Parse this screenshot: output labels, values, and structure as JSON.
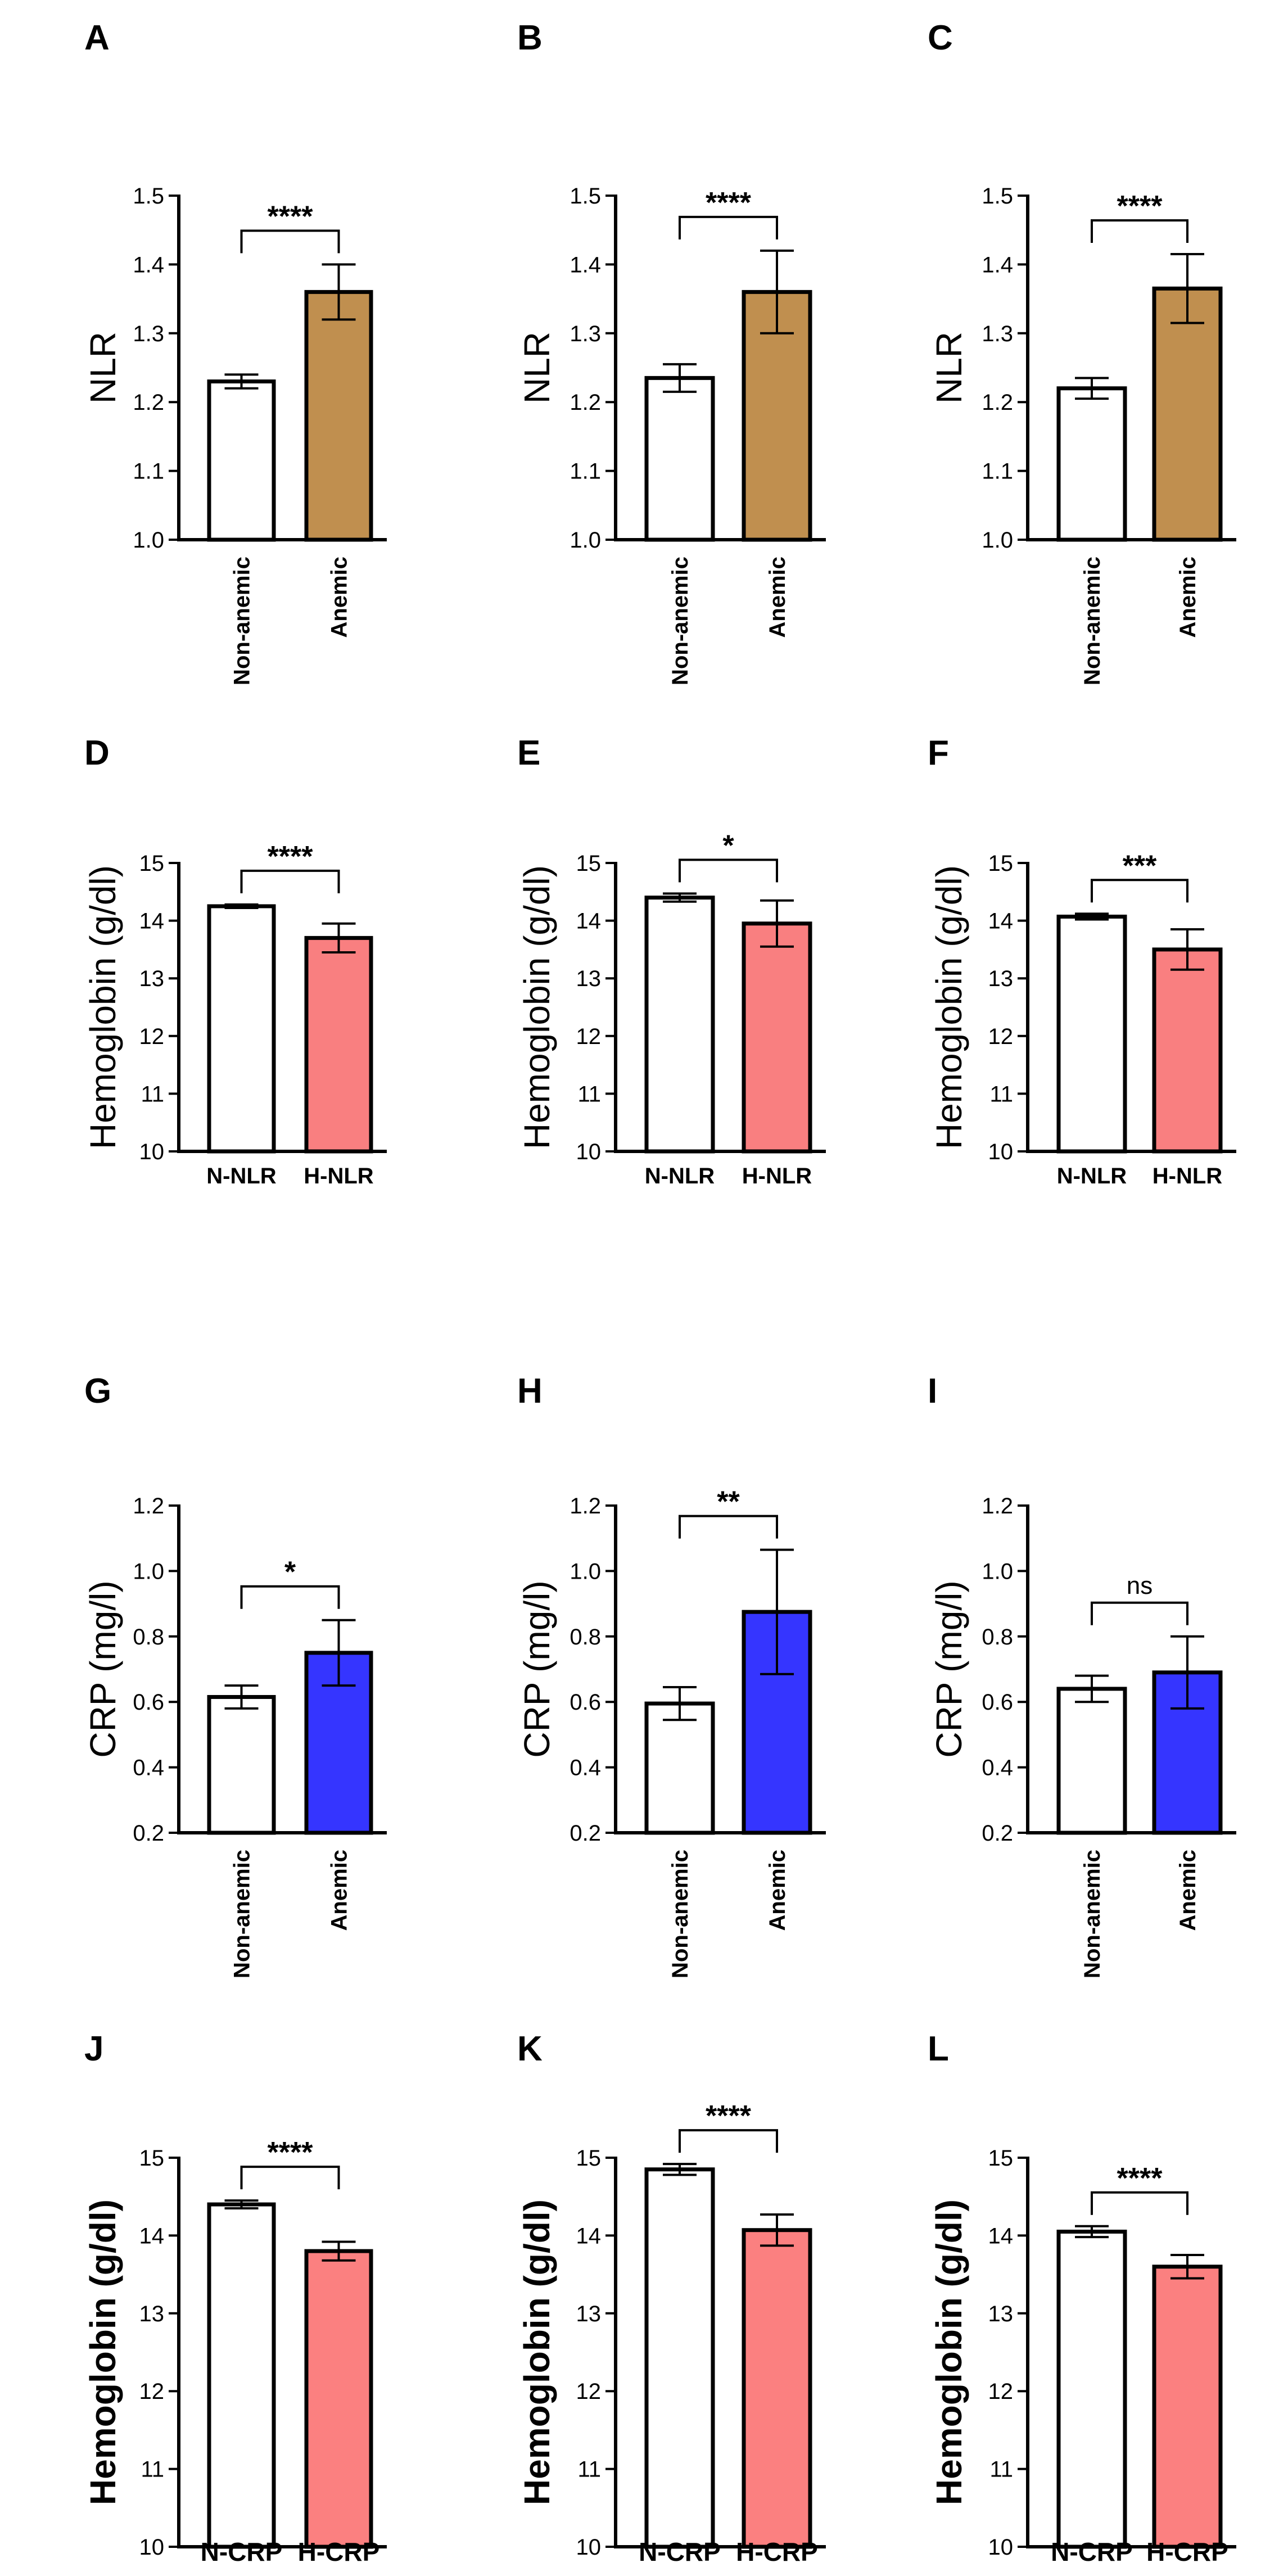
{
  "figure": {
    "title": ""
  },
  "colors": {
    "white_bar": "#ffffff",
    "anemic_nlr": "#c08f4f",
    "h_nlr": "#f97f80",
    "anemic_crp": "#3535ff",
    "h_crp": "#fb8080",
    "axis": "#000000"
  },
  "chart_data": [
    {
      "panel": "A",
      "type": "bar",
      "ylabel": "NLR",
      "ylabel_bold": false,
      "ylim": [
        1.0,
        1.5
      ],
      "yticks": [
        "1.0",
        "1.1",
        "1.2",
        "1.3",
        "1.4",
        "1.5"
      ],
      "categories": [
        "Non-anemic",
        "Anemic"
      ],
      "values": [
        1.23,
        1.36
      ],
      "errors": [
        0.01,
        0.04
      ],
      "bar_colors": [
        "#ffffff",
        "#c08f4f"
      ],
      "significance": "****",
      "tick_labels_rotated": true
    },
    {
      "panel": "B",
      "type": "bar",
      "ylabel": "NLR",
      "ylabel_bold": false,
      "ylim": [
        1.0,
        1.5
      ],
      "yticks": [
        "1.0",
        "1.1",
        "1.2",
        "1.3",
        "1.4",
        "1.5"
      ],
      "categories": [
        "Non-anemic",
        "Anemic"
      ],
      "values": [
        1.235,
        1.36
      ],
      "errors": [
        0.02,
        0.06
      ],
      "bar_colors": [
        "#ffffff",
        "#c08f4f"
      ],
      "significance": "****",
      "tick_labels_rotated": true
    },
    {
      "panel": "C",
      "type": "bar",
      "ylabel": "NLR",
      "ylabel_bold": false,
      "ylim": [
        1.0,
        1.5
      ],
      "yticks": [
        "1.0",
        "1.1",
        "1.2",
        "1.3",
        "1.4",
        "1.5"
      ],
      "categories": [
        "Non-anemic",
        "Anemic"
      ],
      "values": [
        1.22,
        1.365
      ],
      "errors": [
        0.015,
        0.05
      ],
      "bar_colors": [
        "#ffffff",
        "#c08f4f"
      ],
      "significance": "****",
      "tick_labels_rotated": true
    },
    {
      "panel": "D",
      "type": "bar",
      "ylabel": "Hemoglobin (g/dl)",
      "ylabel_bold": false,
      "ylim": [
        10,
        15
      ],
      "yticks": [
        "10",
        "11",
        "12",
        "13",
        "14",
        "15"
      ],
      "categories": [
        "N-NLR",
        "H-NLR"
      ],
      "values": [
        14.25,
        13.7
      ],
      "errors": [
        0.03,
        0.25
      ],
      "bar_colors": [
        "#ffffff",
        "#f97f80"
      ],
      "significance": "****",
      "tick_labels_rotated": false
    },
    {
      "panel": "E",
      "type": "bar",
      "ylabel": "Hemoglobin (g/dl)",
      "ylabel_bold": false,
      "ylim": [
        10,
        15
      ],
      "yticks": [
        "10",
        "11",
        "12",
        "13",
        "14",
        "15"
      ],
      "categories": [
        "N-NLR",
        "H-NLR"
      ],
      "values": [
        14.4,
        13.95
      ],
      "errors": [
        0.07,
        0.4
      ],
      "bar_colors": [
        "#ffffff",
        "#f97f80"
      ],
      "significance": "*",
      "tick_labels_rotated": false
    },
    {
      "panel": "F",
      "type": "bar",
      "ylabel": "Hemoglobin (g/dl)",
      "ylabel_bold": false,
      "ylim": [
        10,
        15
      ],
      "yticks": [
        "10",
        "11",
        "12",
        "13",
        "14",
        "15"
      ],
      "categories": [
        "N-NLR",
        "H-NLR"
      ],
      "values": [
        14.07,
        13.5
      ],
      "errors": [
        0.05,
        0.35
      ],
      "bar_colors": [
        "#ffffff",
        "#f97f80"
      ],
      "significance": "***",
      "tick_labels_rotated": false
    },
    {
      "panel": "G",
      "type": "bar",
      "ylabel": "CRP (mg/l)",
      "ylabel_bold": false,
      "ylim": [
        0.2,
        1.2
      ],
      "yticks": [
        "0.2",
        "0.4",
        "0.6",
        "0.8",
        "1.0",
        "1.2"
      ],
      "categories": [
        "Non-anemic",
        "Anemic"
      ],
      "values": [
        0.615,
        0.75
      ],
      "errors": [
        0.035,
        0.1
      ],
      "bar_colors": [
        "#ffffff",
        "#3535ff"
      ],
      "significance": "*",
      "tick_labels_rotated": true
    },
    {
      "panel": "H",
      "type": "bar",
      "ylabel": "CRP (mg/l)",
      "ylabel_bold": false,
      "ylim": [
        0.2,
        1.2
      ],
      "yticks": [
        "0.2",
        "0.4",
        "0.6",
        "0.8",
        "1.0",
        "1.2"
      ],
      "categories": [
        "Non-anemic",
        "Anemic"
      ],
      "values": [
        0.595,
        0.875
      ],
      "errors": [
        0.05,
        0.19
      ],
      "bar_colors": [
        "#ffffff",
        "#3535ff"
      ],
      "significance": "**",
      "tick_labels_rotated": true
    },
    {
      "panel": "I",
      "type": "bar",
      "ylabel": "CRP (mg/l)",
      "ylabel_bold": false,
      "ylim": [
        0.2,
        1.2
      ],
      "yticks": [
        "0.2",
        "0.4",
        "0.6",
        "0.8",
        "1.0",
        "1.2"
      ],
      "categories": [
        "Non-anemic",
        "Anemic"
      ],
      "values": [
        0.64,
        0.69
      ],
      "errors": [
        0.04,
        0.11
      ],
      "bar_colors": [
        "#ffffff",
        "#3535ff"
      ],
      "significance": "ns",
      "tick_labels_rotated": true
    },
    {
      "panel": "J",
      "type": "bar",
      "ylabel": "Hemoglobin (g/dl)",
      "ylabel_bold": true,
      "ylim": [
        10,
        15
      ],
      "yticks": [
        "10",
        "11",
        "12",
        "13",
        "14",
        "15"
      ],
      "categories": [
        "N-CRP",
        "H-CRP"
      ],
      "values": [
        14.4,
        13.8
      ],
      "errors": [
        0.05,
        0.12
      ],
      "bar_colors": [
        "#ffffff",
        "#fb8080"
      ],
      "significance": "****",
      "tick_labels_rotated": false
    },
    {
      "panel": "K",
      "type": "bar",
      "ylabel": "Hemoglobin (g/dl)",
      "ylabel_bold": true,
      "ylim": [
        10,
        15
      ],
      "yticks": [
        "10",
        "11",
        "12",
        "13",
        "14",
        "15"
      ],
      "categories": [
        "N-CRP",
        "H-CRP"
      ],
      "values": [
        14.85,
        14.07
      ],
      "errors": [
        0.07,
        0.2
      ],
      "bar_colors": [
        "#ffffff",
        "#fb8080"
      ],
      "significance": "****",
      "tick_labels_rotated": false
    },
    {
      "panel": "L",
      "type": "bar",
      "ylabel": "Hemoglobin (g/dl)",
      "ylabel_bold": true,
      "ylim": [
        10,
        15
      ],
      "yticks": [
        "10",
        "11",
        "12",
        "13",
        "14",
        "15"
      ],
      "categories": [
        "N-CRP",
        "H-CRP"
      ],
      "values": [
        14.05,
        13.6
      ],
      "errors": [
        0.07,
        0.15
      ],
      "bar_colors": [
        "#ffffff",
        "#fb8080"
      ],
      "significance": "****",
      "tick_labels_rotated": false
    }
  ]
}
